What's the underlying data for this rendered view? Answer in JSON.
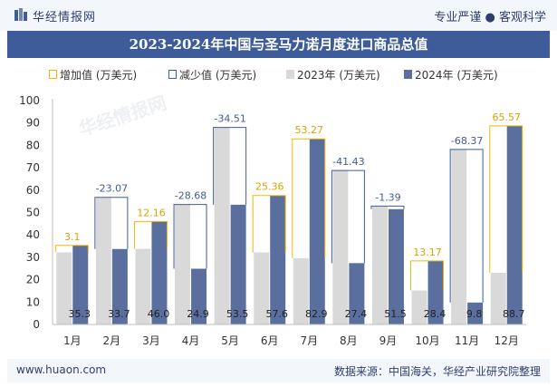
{
  "brand": {
    "logo_text": "华经情报网",
    "tagline": "专业严谨 ● 客观科学",
    "website": "www.huaon.com",
    "source": "数据来源：中国海关，华经产业研究院整理"
  },
  "colors": {
    "title_bg": "#3f5c9a",
    "increase": "#f2b705",
    "decrease": "#3f5c9a",
    "series_2023": "#d9d9d9",
    "series_2024": "#5b6f9f"
  },
  "legend": {
    "increase": "增加值 (万美元)",
    "decrease": "减少值 (万美元)",
    "s2023": "2023年 (万美元)",
    "s2024": "2024年 (万美元)"
  },
  "chart_data": {
    "type": "bar",
    "title": "2023-2024年中国与圣马力诺月度进口商品总值",
    "categories": [
      "1月",
      "2月",
      "3月",
      "4月",
      "5月",
      "6月",
      "7月",
      "8月",
      "9月",
      "10月",
      "11月",
      "12月"
    ],
    "series": [
      {
        "name": "2023年 (万美元)",
        "values": [
          32.2,
          56.8,
          33.8,
          53.6,
          88.0,
          32.2,
          29.6,
          68.8,
          52.9,
          15.2,
          78.2,
          23.1
        ]
      },
      {
        "name": "2024年 (万美元)",
        "values": [
          35.3,
          33.7,
          46.0,
          24.9,
          53.5,
          57.6,
          82.9,
          27.4,
          51.5,
          28.4,
          9.8,
          88.7
        ]
      }
    ],
    "changes": [
      "3.1",
      "-23.07",
      "12.16",
      "-28.68",
      "-34.51",
      "25.36",
      "53.27",
      "-41.43",
      "-1.39",
      "13.17",
      "-68.37",
      "65.57"
    ],
    "bar_labels": [
      "35.3",
      "33.7",
      "46.0",
      "24.9",
      "53.5",
      "57.6",
      "82.9",
      "27.4",
      "51.5",
      "28.4",
      "9.8",
      "88.7"
    ],
    "y_ticks": [
      "0",
      "10",
      "20",
      "30",
      "40",
      "50",
      "60",
      "70",
      "80",
      "90",
      "100"
    ],
    "ylim": [
      0,
      100
    ],
    "grid": false,
    "legend_position": "top"
  }
}
